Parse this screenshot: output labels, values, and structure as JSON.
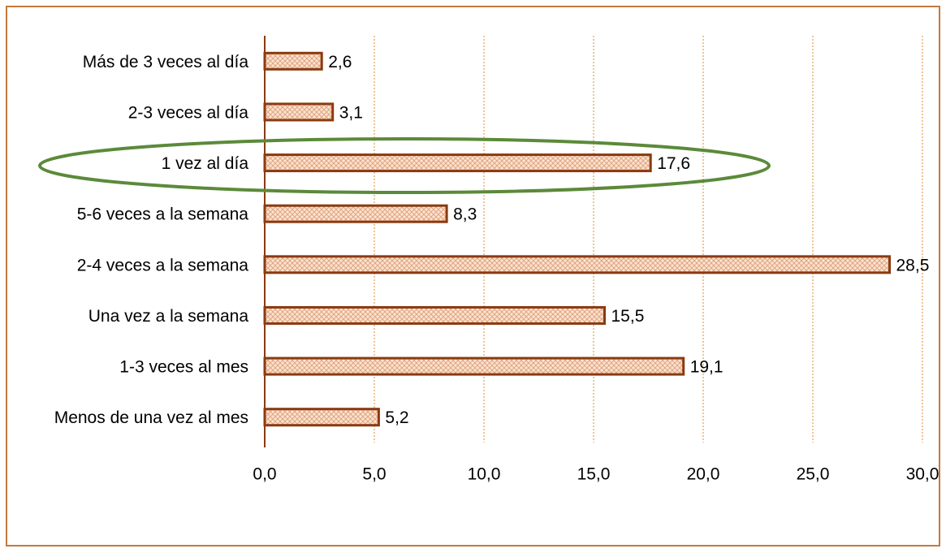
{
  "chart_data": {
    "type": "bar",
    "orientation": "horizontal",
    "categories": [
      "Más de 3 veces al día",
      "2-3 veces al día",
      "1 vez al día",
      "5-6 veces a la semana",
      "2-4 veces a la semana",
      "Una vez a la semana",
      "1-3 veces al mes",
      "Menos de una vez al mes"
    ],
    "values": [
      2.6,
      3.1,
      17.6,
      8.3,
      28.5,
      15.5,
      19.1,
      5.2
    ],
    "value_labels": [
      "2,6",
      "3,1",
      "17,6",
      "8,3",
      "28,5",
      "15,5",
      "19,1",
      "5,2"
    ],
    "color": "#8b3a10",
    "xlim": [
      0,
      30
    ],
    "xticks": [
      {
        "value": 0,
        "label": "0,0"
      },
      {
        "value": 5,
        "label": "5,0"
      },
      {
        "value": 10,
        "label": "10,0"
      },
      {
        "value": 15,
        "label": "15,0"
      },
      {
        "value": 20,
        "label": "20,0"
      },
      {
        "value": 25,
        "label": "25,0"
      },
      {
        "value": 30,
        "label": "30,0"
      }
    ],
    "grid": true
  }
}
